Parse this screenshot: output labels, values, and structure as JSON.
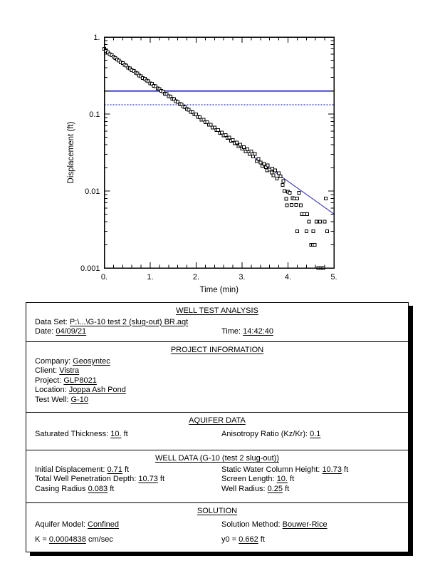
{
  "chart_data": {
    "type": "scatter",
    "title": "",
    "xlabel": "Time (min)",
    "ylabel": "Displacement (ft)",
    "grid": false,
    "x_axis": {
      "min": 0,
      "max": 5,
      "major_step": 1,
      "minor_step": 0.2,
      "tick_labels": [
        "0.",
        "1.",
        "2.",
        "3.",
        "4.",
        "5."
      ]
    },
    "y_axis": {
      "scale": "log",
      "min": 0.001,
      "max": 1,
      "tick_values": [
        1,
        0.1,
        0.01,
        0.001
      ],
      "tick_labels": [
        "1.",
        "0.1",
        "0.01",
        "0.001"
      ]
    },
    "marker": {
      "shape": "open-square",
      "size": 4,
      "color": "#000000",
      "fill": "#ffffff"
    },
    "fit_line": {
      "name": "bouwer-rice-fit",
      "color": "#3434b4",
      "x": [
        0,
        5
      ],
      "y": [
        0.662,
        0.00504
      ]
    },
    "reference_lines": [
      {
        "name": "upper-head-ratio-line",
        "style": "solid",
        "color": "#0000b4",
        "y": 0.199
      },
      {
        "name": "lower-head-ratio-line",
        "style": "dotted",
        "color": "#0000b4",
        "y": 0.132
      }
    ],
    "series": [
      {
        "name": "observed-displacement",
        "points": [
          [
            0.0,
            0.7
          ],
          [
            0.04,
            0.658
          ],
          [
            0.08,
            0.635
          ],
          [
            0.12,
            0.601
          ],
          [
            0.16,
            0.581
          ],
          [
            0.2,
            0.555
          ],
          [
            0.24,
            0.536
          ],
          [
            0.28,
            0.511
          ],
          [
            0.32,
            0.495
          ],
          [
            0.36,
            0.47
          ],
          [
            0.4,
            0.458
          ],
          [
            0.44,
            0.434
          ],
          [
            0.48,
            0.424
          ],
          [
            0.52,
            0.401
          ],
          [
            0.56,
            0.392
          ],
          [
            0.6,
            0.371
          ],
          [
            0.64,
            0.363
          ],
          [
            0.68,
            0.343
          ],
          [
            0.72,
            0.336
          ],
          [
            0.76,
            0.317
          ],
          [
            0.8,
            0.311
          ],
          [
            0.84,
            0.293
          ],
          [
            0.88,
            0.288
          ],
          [
            0.92,
            0.271
          ],
          [
            0.96,
            0.267
          ],
          [
            1.0,
            0.251
          ],
          [
            1.04,
            0.247
          ],
          [
            1.08,
            0.232
          ],
          [
            1.12,
            0.229
          ],
          [
            1.16,
            0.215
          ],
          [
            1.2,
            0.212
          ],
          [
            1.24,
            0.199
          ],
          [
            1.28,
            0.196
          ],
          [
            1.32,
            0.184
          ],
          [
            1.36,
            0.182
          ],
          [
            1.4,
            0.17
          ],
          [
            1.44,
            0.168
          ],
          [
            1.48,
            0.158
          ],
          [
            1.52,
            0.156
          ],
          [
            1.56,
            0.146
          ],
          [
            1.6,
            0.144
          ],
          [
            1.64,
            0.135
          ],
          [
            1.68,
            0.133
          ],
          [
            1.72,
            0.125
          ],
          [
            1.76,
            0.123
          ],
          [
            1.8,
            0.116
          ],
          [
            1.84,
            0.114
          ],
          [
            1.88,
            0.107
          ],
          [
            1.92,
            0.106
          ],
          [
            1.96,
            0.099
          ],
          [
            2.0,
            0.0985
          ],
          [
            2.04,
            0.0915
          ],
          [
            2.08,
            0.0912
          ],
          [
            2.12,
            0.0846
          ],
          [
            2.16,
            0.0844
          ],
          [
            2.2,
            0.0782
          ],
          [
            2.24,
            0.0781
          ],
          [
            2.28,
            0.0723
          ],
          [
            2.32,
            0.0723
          ],
          [
            2.36,
            0.0668
          ],
          [
            2.4,
            0.067
          ],
          [
            2.44,
            0.0617
          ],
          [
            2.48,
            0.062
          ],
          [
            2.52,
            0.057
          ],
          [
            2.56,
            0.0575
          ],
          [
            2.6,
            0.0527
          ],
          [
            2.64,
            0.0532
          ],
          [
            2.68,
            0.0487
          ],
          [
            2.72,
            0.0494
          ],
          [
            2.76,
            0.045
          ],
          [
            2.8,
            0.0459
          ],
          [
            2.84,
            0.0416
          ],
          [
            2.88,
            0.0427
          ],
          [
            2.92,
            0.0384
          ],
          [
            2.96,
            0.0398
          ],
          [
            3.0,
            0.0355
          ],
          [
            3.04,
            0.0372
          ],
          [
            3.08,
            0.0328
          ],
          [
            3.12,
            0.0347
          ],
          [
            3.16,
            0.0303
          ],
          [
            3.2,
            0.0325
          ],
          [
            3.24,
            0.028
          ],
          [
            3.28,
            0.0303
          ],
          [
            3.32,
            0.0245
          ],
          [
            3.36,
            0.0262
          ],
          [
            3.4,
            0.0235
          ],
          [
            3.44,
            0.021
          ],
          [
            3.48,
            0.0225
          ],
          [
            3.52,
            0.0205
          ],
          [
            3.54,
            0.0185
          ],
          [
            3.56,
            0.0215
          ],
          [
            3.6,
            0.019
          ],
          [
            3.64,
            0.0175
          ],
          [
            3.66,
            0.0195
          ],
          [
            3.68,
            0.016
          ],
          [
            3.72,
            0.0185
          ],
          [
            3.76,
            0.0145
          ],
          [
            3.8,
            0.017
          ],
          [
            3.84,
            0.0155
          ],
          [
            3.88,
            0.012
          ],
          [
            3.9,
            0.0135
          ],
          [
            3.92,
            0.01
          ],
          [
            3.96,
            0.0079
          ],
          [
            3.98,
            0.0065
          ],
          [
            4.0,
            0.0098
          ],
          [
            4.04,
            0.0095
          ],
          [
            4.08,
            0.0066
          ],
          [
            4.1,
            0.0081
          ],
          [
            4.14,
            0.008
          ],
          [
            4.18,
            0.0066
          ],
          [
            4.2,
            0.003
          ],
          [
            4.2,
            0.008
          ],
          [
            4.24,
            0.0095
          ],
          [
            4.28,
            0.0065
          ],
          [
            4.3,
            0.005
          ],
          [
            4.36,
            0.005
          ],
          [
            4.4,
            0.003
          ],
          [
            4.42,
            0.005
          ],
          [
            4.46,
            0.004
          ],
          [
            4.5,
            0.002
          ],
          [
            4.54,
            0.002
          ],
          [
            4.55,
            0.003
          ],
          [
            4.58,
            0.002
          ],
          [
            4.62,
            0.004
          ],
          [
            4.66,
            0.001
          ],
          [
            4.7,
            0.004
          ],
          [
            4.72,
            0.001
          ],
          [
            4.77,
            0.001
          ],
          [
            4.8,
            0.004
          ],
          [
            4.82,
            0.008
          ],
          [
            4.85,
            0.003
          ]
        ]
      }
    ]
  },
  "report": {
    "sections": {
      "well_test_analysis": {
        "title": "WELL TEST ANALYSIS",
        "data_set_label": "Data Set:",
        "data_set_value": "P:\\...\\G-10 test 2 (slug-out) BR.aqt",
        "date_label": "Date:",
        "date_value": "04/09/21",
        "time_label": "Time:",
        "time_value": "14:42:40"
      },
      "project_information": {
        "title": "PROJECT INFORMATION",
        "rows": [
          {
            "label": "Company:",
            "value": "Geosyntec"
          },
          {
            "label": "Client:",
            "value": "Vistra"
          },
          {
            "label": "Project:",
            "value": "GLP8021"
          },
          {
            "label": "Location:",
            "value": "Joppa Ash Pond"
          },
          {
            "label": "Test Well:",
            "value": "G-10"
          }
        ]
      },
      "aquifer_data": {
        "title": "AQUIFER DATA",
        "left": {
          "label": "Saturated Thickness:",
          "value": "10.",
          "unit": "ft"
        },
        "right": {
          "label": "Anisotropy Ratio (Kz/Kr):",
          "value": "0.1",
          "unit": ""
        }
      },
      "well_data": {
        "title": "WELL DATA (G-10 (test 2 slug-out))",
        "left_rows": [
          {
            "label": "Initial Displacement:",
            "value": "0.71",
            "unit": "ft"
          },
          {
            "label": "Total Well Penetration Depth:",
            "value": "10.73",
            "unit": "ft"
          },
          {
            "label": "Casing Radius",
            "value": "0.083",
            "unit": "ft"
          }
        ],
        "right_rows": [
          {
            "label": "Static Water Column Height:",
            "value": "10.73",
            "unit": "ft"
          },
          {
            "label": "Screen Length:",
            "value": "10.",
            "unit": "ft"
          },
          {
            "label": "Well Radius:",
            "value": "0.25",
            "unit": "ft"
          }
        ]
      },
      "solution": {
        "title": "SOLUTION",
        "row1_left": {
          "label": "Aquifer Model:",
          "value": "Confined"
        },
        "row1_right": {
          "label": "Solution Method:",
          "value": "Bouwer-Rice"
        },
        "row2_left": {
          "label": "K",
          "eq": "=",
          "value": "0.0004838",
          "unit": "cm/sec"
        },
        "row2_right": {
          "label": "y0",
          "eq": "=",
          "value": "0.662",
          "unit": "ft"
        }
      }
    }
  }
}
